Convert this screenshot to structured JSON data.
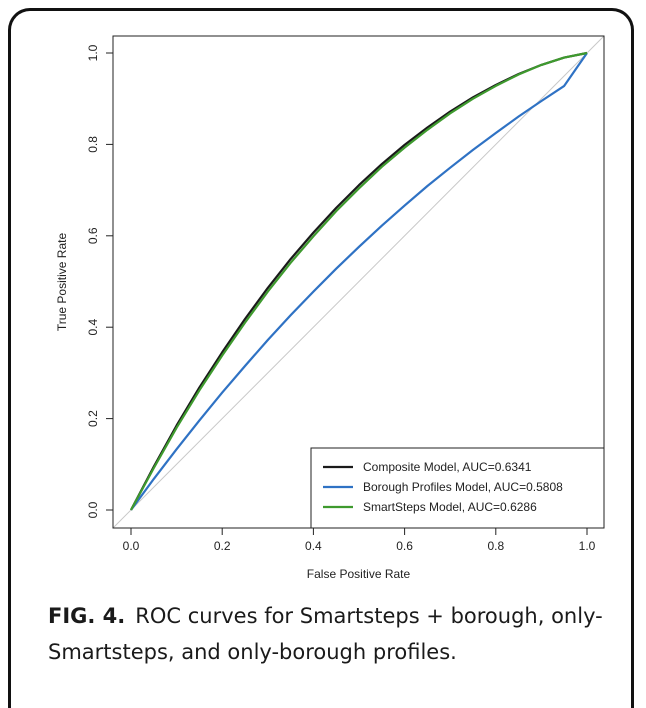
{
  "figure": {
    "label": "FIG. 4.",
    "caption": "ROC curves for Smartsteps + borough, only-Smartsteps, and only-borough profiles."
  },
  "chart_data": {
    "type": "line",
    "title": "",
    "xlabel": "False Positive Rate",
    "ylabel": "True Positive Rate",
    "xlim": [
      0,
      1
    ],
    "ylim": [
      0,
      1
    ],
    "xticks": [
      "0.0",
      "0.2",
      "0.4",
      "0.6",
      "0.8",
      "1.0"
    ],
    "yticks": [
      "0.0",
      "0.2",
      "0.4",
      "0.6",
      "0.8",
      "1.0"
    ],
    "grid": false,
    "legend_position": "bottom-right",
    "diagonal": {
      "color": "#c8c8c8",
      "x": [
        0,
        1
      ],
      "y": [
        0,
        1
      ]
    },
    "x": [
      0,
      0.05,
      0.1,
      0.15,
      0.2,
      0.25,
      0.3,
      0.35,
      0.4,
      0.45,
      0.5,
      0.55,
      0.6,
      0.65,
      0.7,
      0.75,
      0.8,
      0.85,
      0.9,
      0.95,
      1.0
    ],
    "series": [
      {
        "name": "Composite Model, AUC=0.6341",
        "color": "#1a1a1a",
        "values": [
          0,
          0.095,
          0.185,
          0.268,
          0.345,
          0.418,
          0.486,
          0.549,
          0.607,
          0.661,
          0.711,
          0.757,
          0.799,
          0.837,
          0.872,
          0.903,
          0.93,
          0.954,
          0.974,
          0.99,
          1.0
        ]
      },
      {
        "name": "Borough Profiles Model, AUC=0.5808",
        "color": "#2f72c4",
        "values": [
          0,
          0.068,
          0.133,
          0.196,
          0.257,
          0.315,
          0.372,
          0.426,
          0.478,
          0.528,
          0.576,
          0.622,
          0.666,
          0.709,
          0.749,
          0.788,
          0.825,
          0.861,
          0.895,
          0.928,
          1.0
        ]
      },
      {
        "name": "SmartSteps Model, AUC=0.6286",
        "color": "#3e9a2e",
        "values": [
          0,
          0.092,
          0.18,
          0.262,
          0.338,
          0.41,
          0.478,
          0.541,
          0.599,
          0.654,
          0.704,
          0.751,
          0.793,
          0.832,
          0.868,
          0.9,
          0.928,
          0.953,
          0.974,
          0.99,
          1.0
        ]
      }
    ]
  }
}
